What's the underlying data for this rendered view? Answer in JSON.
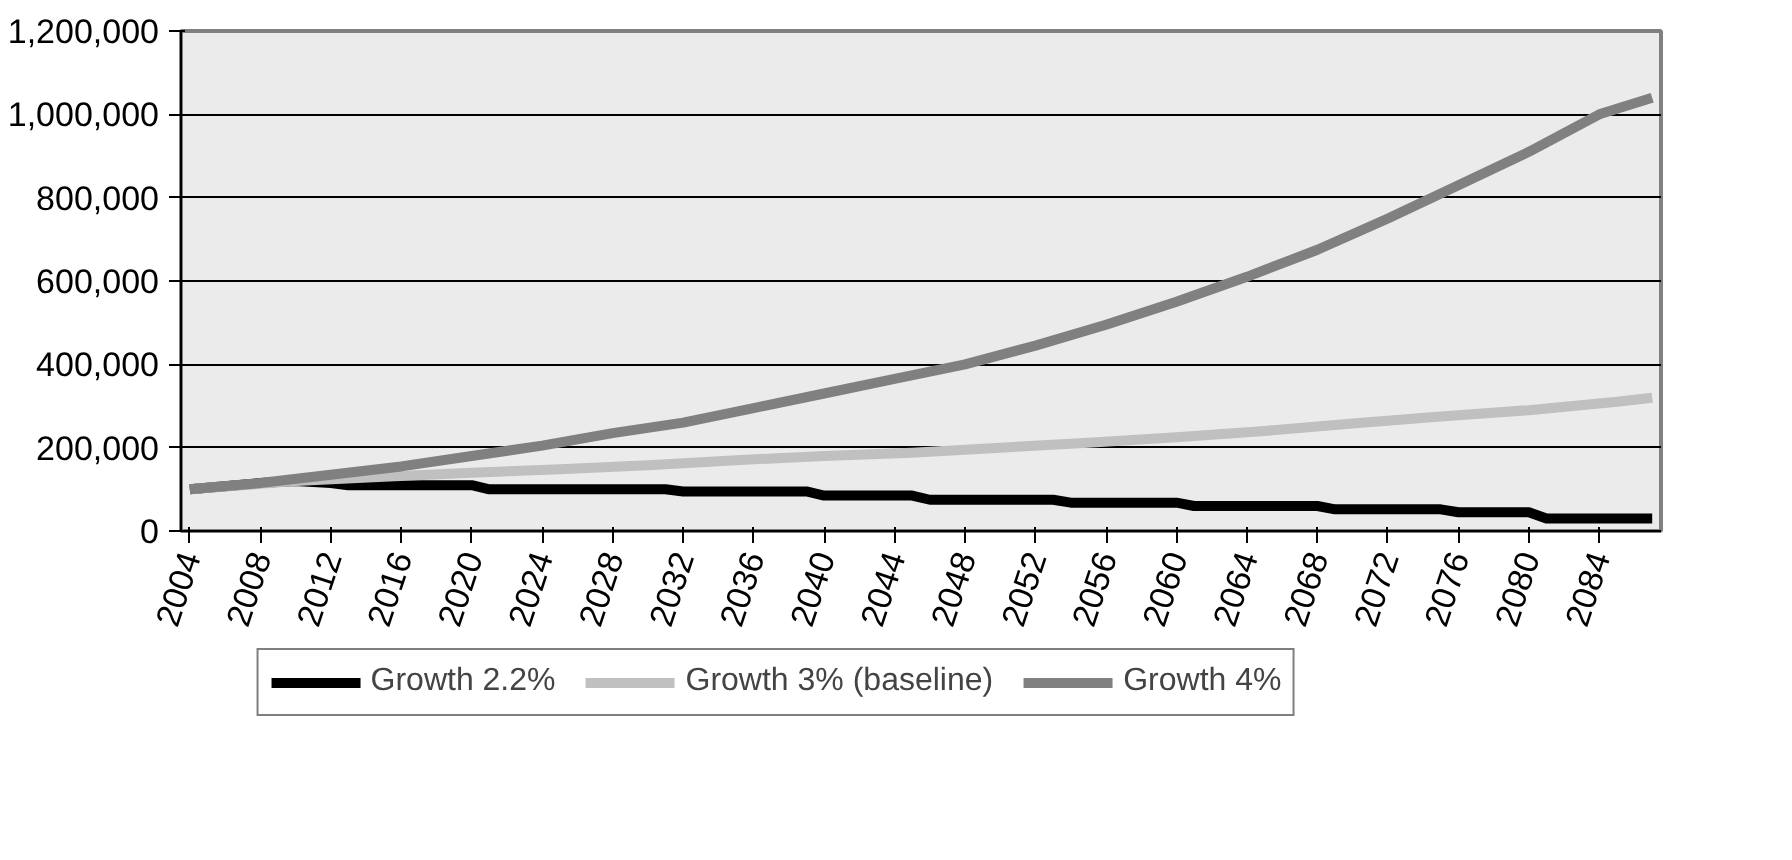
{
  "chart_data": {
    "type": "line",
    "xlim": [
      2003.5,
      2087.5
    ],
    "xticks": [
      2004,
      2008,
      2012,
      2016,
      2020,
      2024,
      2028,
      2032,
      2036,
      2040,
      2044,
      2048,
      2052,
      2056,
      2060,
      2064,
      2068,
      2072,
      2076,
      2080,
      2084
    ],
    "ylim": [
      0,
      1200000
    ],
    "yticks": [
      {
        "value": 0,
        "label": "0"
      },
      {
        "value": 200000,
        "label": "200,000"
      },
      {
        "value": 400000,
        "label": "400,000"
      },
      {
        "value": 600000,
        "label": "600,000"
      },
      {
        "value": 800000,
        "label": "800,000"
      },
      {
        "value": 1000000,
        "label": "1,000,000"
      },
      {
        "value": 1200000,
        "label": "1,200,000"
      }
    ],
    "grid": "y",
    "legend": "bottom",
    "marker": "none",
    "line_style": "solid",
    "series": [
      {
        "name": "Growth 2.2%",
        "color": "#000000",
        "x": [
          2004,
          2008,
          2010,
          2012,
          2013,
          2020,
          2021,
          2031,
          2032,
          2039,
          2040,
          2045,
          2046,
          2053,
          2054,
          2060,
          2061,
          2068,
          2069,
          2075,
          2076,
          2080,
          2081,
          2087
        ],
        "values": [
          100000,
          115000,
          120000,
          115000,
          110000,
          110000,
          100000,
          100000,
          95000,
          95000,
          85000,
          85000,
          75000,
          75000,
          68000,
          68000,
          60000,
          60000,
          52000,
          52000,
          45000,
          45000,
          30000,
          30000
        ]
      },
      {
        "name": "Growth 3% (baseline)",
        "color": "#c0c0c0",
        "x": [
          2004,
          2010,
          2015,
          2020,
          2025,
          2030,
          2035,
          2040,
          2045,
          2050,
          2055,
          2060,
          2065,
          2070,
          2075,
          2080,
          2085,
          2087
        ],
        "values": [
          100000,
          120000,
          130000,
          140000,
          148000,
          158000,
          170000,
          180000,
          188000,
          200000,
          212000,
          225000,
          240000,
          258000,
          275000,
          290000,
          310000,
          320000
        ]
      },
      {
        "name": "Growth 4%",
        "color": "#808080",
        "x": [
          2004,
          2008,
          2012,
          2016,
          2020,
          2024,
          2028,
          2032,
          2036,
          2040,
          2044,
          2048,
          2052,
          2056,
          2060,
          2064,
          2068,
          2072,
          2076,
          2080,
          2084,
          2087
        ],
        "values": [
          100000,
          115000,
          135000,
          155000,
          180000,
          205000,
          235000,
          260000,
          295000,
          330000,
          365000,
          400000,
          445000,
          495000,
          550000,
          610000,
          675000,
          750000,
          830000,
          910000,
          1000000,
          1040000
        ]
      }
    ]
  }
}
